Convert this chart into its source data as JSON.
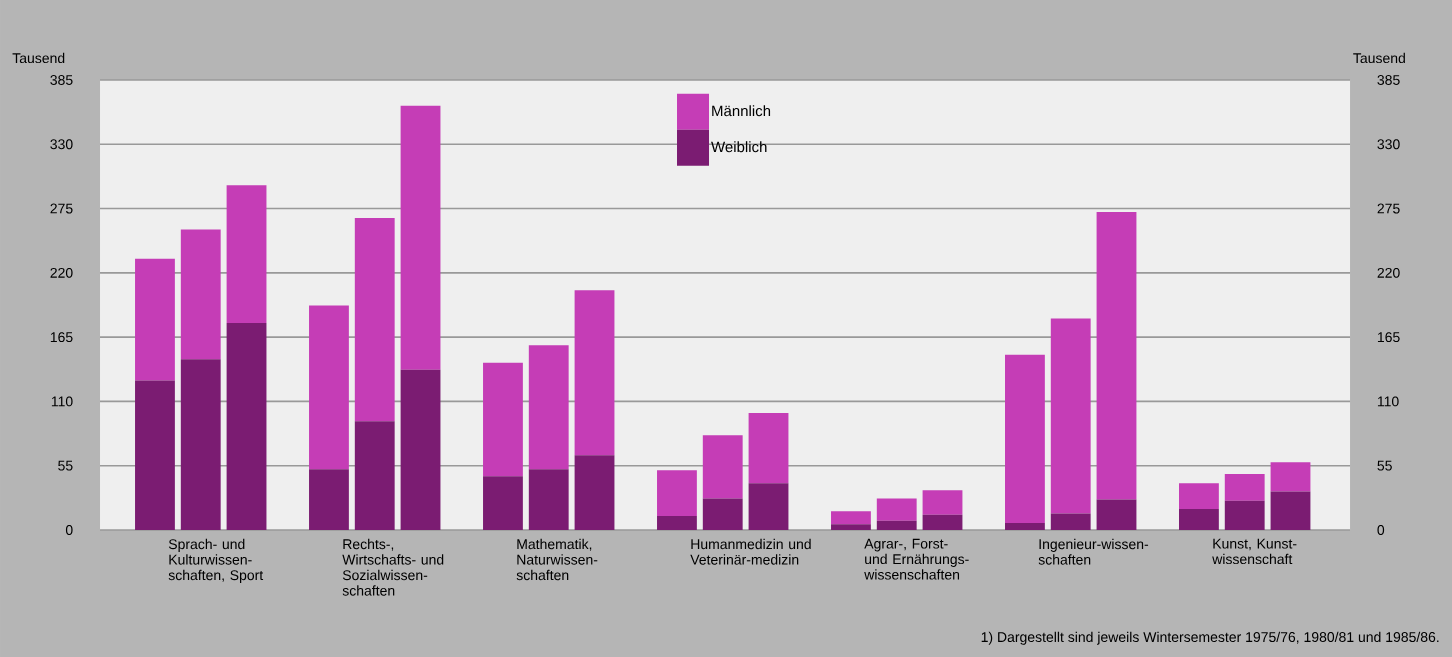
{
  "chart_data": {
    "type": "bar",
    "stacked": true,
    "categories": [
      null,
      "Sprach- und Kulturwissen-schaften, Sport",
      null,
      null,
      "Rechts-, Wirtschafts- und Sozialwissen-schaften",
      null,
      null,
      "Mathematik, Naturwissen-schaften",
      null,
      null,
      "Humanmedizin und Veterinär-medizin",
      null,
      null,
      "Agrar-, Forst- und Ernährungs-wissenschaften",
      null,
      null,
      "Ingenieur-wissen-schaften",
      null,
      null,
      "Kunst, Kunst-wissenschaft",
      null
    ],
    "series": [
      {
        "name": "Weiblich",
        "color": "#7b1c72",
        "values": [
          128,
          146,
          177,
          52,
          93,
          137,
          46,
          52,
          64,
          12,
          27,
          40,
          5,
          8,
          13,
          6,
          14,
          26,
          18,
          25,
          33
        ]
      },
      {
        "name": "Männlich",
        "color": "#c53db6",
        "values": [
          104,
          111,
          118,
          140,
          174,
          226,
          97,
          106,
          141,
          39,
          54,
          60,
          11,
          19,
          21,
          144,
          167,
          246,
          22,
          23,
          25
        ]
      }
    ],
    "ylabel": "Tausend",
    "y2label": "Tausend",
    "ylim": [
      0,
      385
    ],
    "yticks": [
      0,
      55,
      110,
      165,
      220,
      275,
      330,
      385
    ],
    "y2lim": [
      0,
      385
    ],
    "y2ticks": [
      0,
      55,
      110,
      165,
      220,
      275,
      330,
      385
    ],
    "grid": "y",
    "legend": "top",
    "annotations": [
      "1) Dargestellt sind jeweils Wintersemester 1975/76, 1980/81 und 1985/86."
    ]
  }
}
